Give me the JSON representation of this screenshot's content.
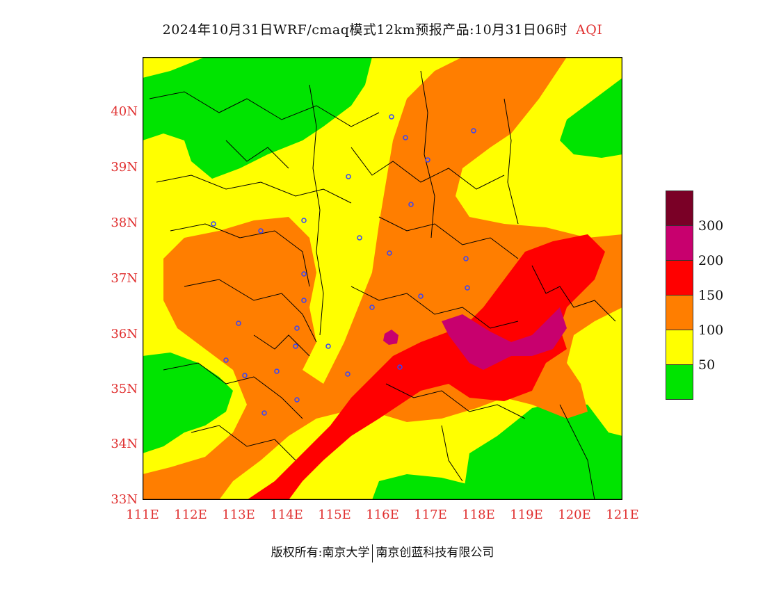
{
  "title": {
    "main": "2024年10月31日WRF/cmaq模式12km预报产品:10月31日06时",
    "variable": "AQI"
  },
  "latitude_labels": [
    "40N",
    "39N",
    "38N",
    "37N",
    "36N",
    "35N",
    "34N",
    "33N"
  ],
  "longitude_labels": [
    "111E",
    "112E",
    "113E",
    "114E",
    "115E",
    "116E",
    "117E",
    "118E",
    "119E",
    "120E",
    "121E"
  ],
  "legend": {
    "labels": [
      "300",
      "200",
      "150",
      "100",
      "50"
    ],
    "colors": [
      "#7a0026",
      "#c8006e",
      "#ff0000",
      "#ff7e00",
      "#ffff00",
      "#00e400"
    ]
  },
  "footer": {
    "copyright": "版权所有:南京大学",
    "company": "南京创蓝科技有限公司"
  }
}
